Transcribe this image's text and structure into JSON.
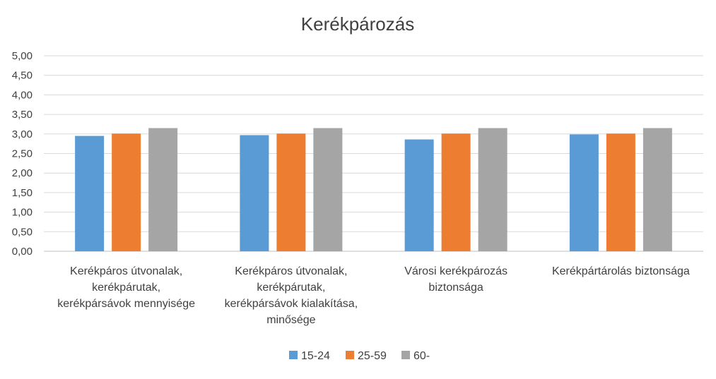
{
  "chart_data": {
    "type": "bar",
    "title": "Kerékpározás",
    "xlabel": "",
    "ylabel": "",
    "ylim": [
      0,
      5
    ],
    "yticks": [
      "0,00",
      "0,50",
      "1,00",
      "1,50",
      "2,00",
      "2,50",
      "3,00",
      "3,50",
      "4,00",
      "4,50",
      "5,00"
    ],
    "grid": true,
    "legend_position": "bottom",
    "categories": [
      [
        "Kerékpáros útvonalak,",
        "kerékpárutak,",
        "kerékpársávok mennyisége"
      ],
      [
        "Kerékpáros útvonalak,",
        "kerékpárutak,",
        "kerékpársávok kialakítása,",
        "minősége"
      ],
      [
        "Városi kerékpározás",
        "biztonsága"
      ],
      [
        "Kerékpártárolás biztonsága"
      ]
    ],
    "series": [
      {
        "name": "15-24",
        "color": "#5B9BD5",
        "values": [
          2.95,
          2.97,
          2.86,
          2.99
        ]
      },
      {
        "name": "25-59",
        "color": "#ED7D31",
        "values": [
          3.01,
          3.01,
          3.01,
          3.01
        ]
      },
      {
        "name": "60-",
        "color": "#A5A5A5",
        "values": [
          3.15,
          3.15,
          3.15,
          3.15
        ]
      }
    ]
  }
}
